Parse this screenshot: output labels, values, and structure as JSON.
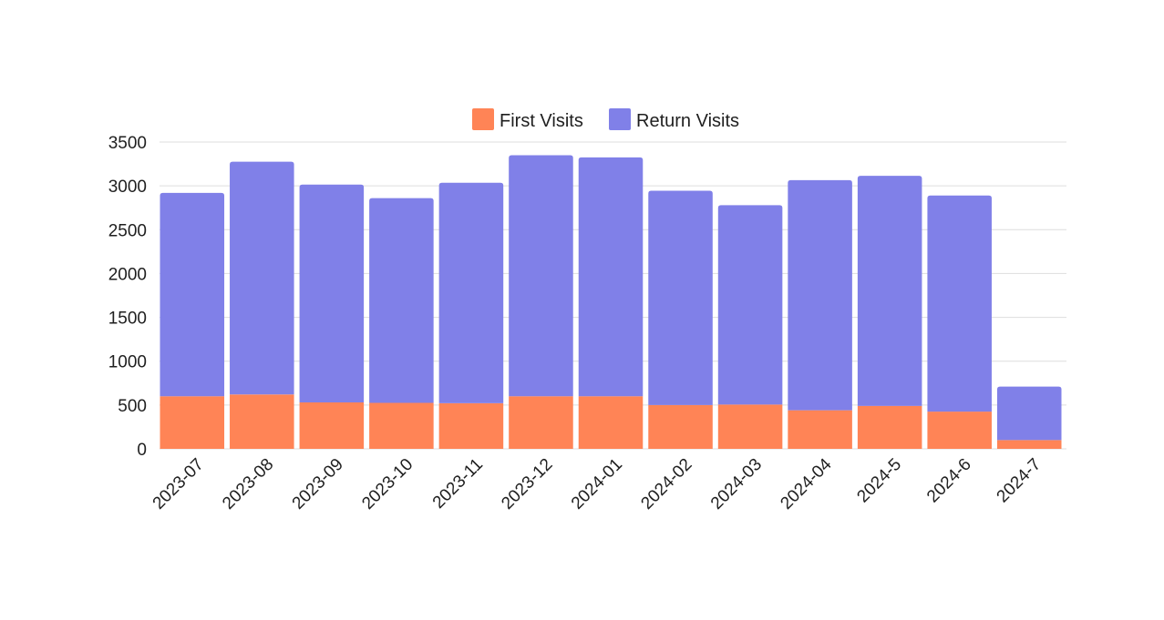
{
  "chart_data": {
    "type": "bar",
    "stacked": true,
    "categories": [
      "2023-07",
      "2023-08",
      "2023-09",
      "2023-10",
      "2023-11",
      "2023-12",
      "2024-01",
      "2024-02",
      "2024-03",
      "2024-04",
      "2024-5",
      "2024-6",
      "2024-7"
    ],
    "series": [
      {
        "name": "First Visits",
        "color": "#FF8456",
        "values": [
          600,
          620,
          530,
          525,
          520,
          600,
          600,
          500,
          505,
          440,
          490,
          425,
          100
        ]
      },
      {
        "name": "Return Visits",
        "color": "#8080E8",
        "values": [
          2320,
          2655,
          2485,
          2335,
          2515,
          2750,
          2725,
          2445,
          2275,
          2625,
          2625,
          2465,
          610
        ]
      }
    ],
    "y_ticks": [
      "0",
      "500",
      "1000",
      "1500",
      "2000",
      "2500",
      "3000",
      "3500"
    ],
    "ylim": [
      0,
      3500
    ],
    "title": "",
    "xlabel": "",
    "ylabel": "",
    "legend_position": "top-center",
    "grid": true
  }
}
